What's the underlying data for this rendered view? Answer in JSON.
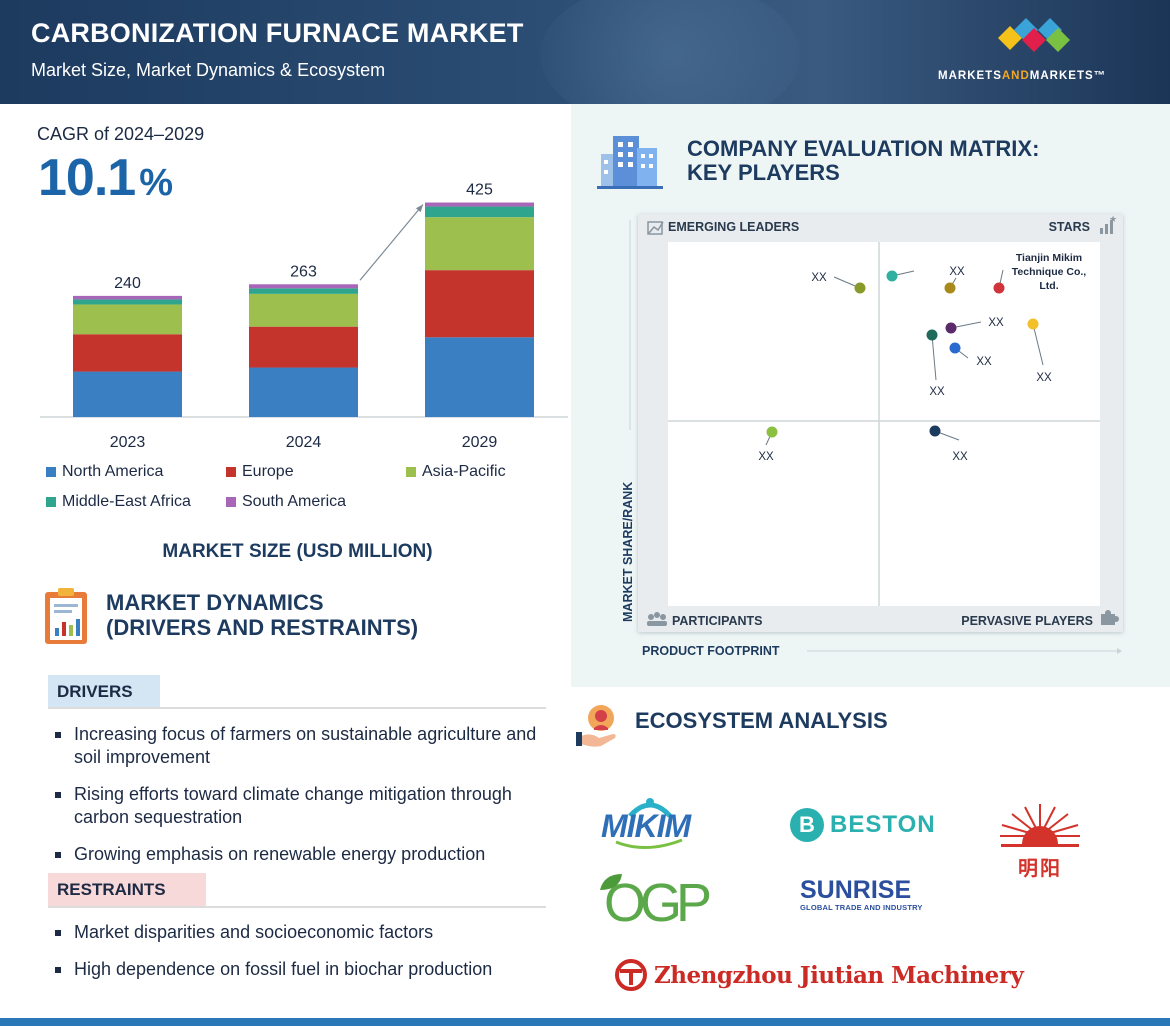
{
  "header": {
    "title": "CARBONIZATION FURNACE MARKET",
    "subtitle": "Market Size, Market Dynamics & Ecosystem",
    "brand_prefix": "MARKETS",
    "brand_and": "AND",
    "brand_suffix": "MARKETS™"
  },
  "cagr": {
    "label": "CAGR of 2024–2029",
    "value": "10.1",
    "unit": "%"
  },
  "chart_data": {
    "type": "bar",
    "stacked": true,
    "categories": [
      "2023",
      "2024",
      "2029"
    ],
    "totals": [
      240,
      263,
      425
    ],
    "series": [
      {
        "name": "North America",
        "color": "#3a7fc1",
        "values": [
          90,
          98,
          158
        ]
      },
      {
        "name": "Europe",
        "color": "#c4342d",
        "values": [
          74,
          81,
          133
        ]
      },
      {
        "name": "Asia-Pacific",
        "color": "#9dbf4e",
        "values": [
          59,
          65,
          105
        ]
      },
      {
        "name": "Middle-East Africa",
        "color": "#2fa58d",
        "values": [
          10,
          11,
          21
        ]
      },
      {
        "name": "South America",
        "color": "#a866b8",
        "values": [
          7,
          8,
          8
        ]
      }
    ],
    "xlabel": "MARKET SIZE (USD MILLION)",
    "ylim": [
      0,
      430
    ],
    "grid": false,
    "legend": "bottom"
  },
  "dynamics": {
    "title_line1": "MARKET DYNAMICS",
    "title_line2": "(DRIVERS AND RESTRAINTS)",
    "drivers_label": "DRIVERS",
    "drivers": [
      "Increasing focus of farmers on sustainable agriculture and soil improvement",
      "Rising efforts toward climate change mitigation through carbon sequestration",
      "Growing emphasis on renewable energy production"
    ],
    "restraints_label": "RESTRAINTS",
    "restraints": [
      "Market disparities and socioeconomic factors",
      "High dependence on fossil fuel in biochar production"
    ]
  },
  "matrix": {
    "title_line1": "COMPANY EVALUATION MATRIX:",
    "title_line2": "KEY PLAYERS",
    "quadrants": {
      "top_left": "EMERGING LEADERS",
      "top_right": "STARS",
      "bottom_left": "PARTICIPANTS",
      "bottom_right": "PERVASIVE PLAYERS"
    },
    "y_axis": "MARKET SHARE/RANK",
    "x_axis": "PRODUCT FOOTPRINT",
    "players": [
      {
        "label": "XX",
        "color": "#8a9a2a"
      },
      {
        "label": "",
        "color": "#2fb0a0"
      },
      {
        "label": "XX",
        "color": "#a88a1a"
      },
      {
        "label": "Tianjin Mikim Technique Co., Ltd.",
        "color": "#d0343a"
      },
      {
        "label": "XX",
        "color": "#5a2a6a"
      },
      {
        "label": "XX",
        "color": "#1f6a5a"
      },
      {
        "label": "XX",
        "color": "#2a6ad0"
      },
      {
        "label": "XX",
        "color": "#f2c12a"
      },
      {
        "label": "XX",
        "color": "#8cc040"
      },
      {
        "label": "XX",
        "color": "#1d3a5f"
      }
    ]
  },
  "ecosystem": {
    "title": "ECOSYSTEM ANALYSIS",
    "logos": {
      "mikim": "MIKIM",
      "beston": "BESTON",
      "beston_badge": "B",
      "mingyang": "明阳",
      "ogp": "OGP",
      "sunrise": "SUNRISE",
      "sunrise_sub": "GLOBAL TRADE AND INDUSTRY",
      "jiutian": "Zhengzhou Jiutian Machinery"
    }
  }
}
